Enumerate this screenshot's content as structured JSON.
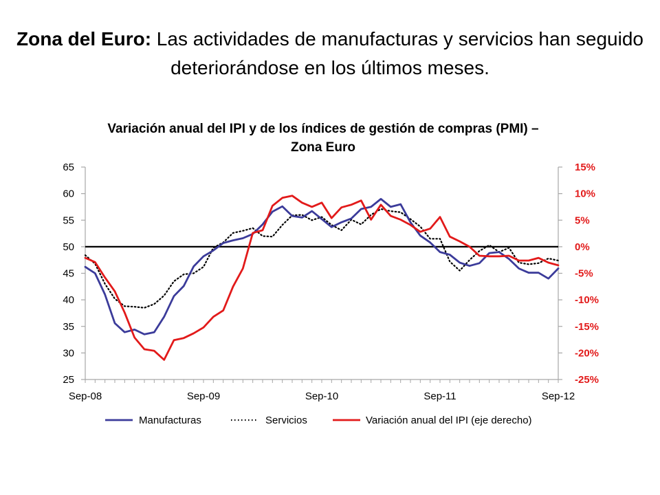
{
  "slide": {
    "title_bold": "Zona del Euro:",
    "title_rest": " Las actividades de manufacturas y servicios han seguido deteriorándose en los últimos meses."
  },
  "colors": {
    "manufacturas": "#3b3b9a",
    "servicios": "#000000",
    "ipi": "#e21a1a"
  },
  "chart_data": {
    "type": "line",
    "title": "Variación anual del IPI  y de los índices de gestión de compras (PMI) – Zona Euro",
    "y_left_range": [
      25,
      65
    ],
    "y_left_ticks": [
      "25",
      "30",
      "35",
      "40",
      "45",
      "50",
      "55",
      "60",
      "65"
    ],
    "y_right_range": [
      -25,
      15
    ],
    "y_right_ticks": [
      "-25%",
      "-20%",
      "-15%",
      "-10%",
      "-5%",
      "0%",
      "5%",
      "10%",
      "15%"
    ],
    "x_range": [
      0,
      48
    ],
    "x_ticks": [
      {
        "x": 0,
        "label": "Sep-08"
      },
      {
        "x": 12,
        "label": "Sep-09"
      },
      {
        "x": 24,
        "label": "Sep-10"
      },
      {
        "x": 36,
        "label": "Sep-11"
      },
      {
        "x": 48,
        "label": "Sep-12"
      }
    ],
    "reference_line": {
      "axis": "left",
      "value": 50
    },
    "series": [
      {
        "name": "Manufacturas",
        "axis": "left",
        "style": "solid",
        "values": [
          46.2,
          45,
          41,
          35.6,
          33.9,
          34.4,
          33.5,
          33.9,
          36.8,
          40.7,
          42.6,
          46.3,
          48.2,
          49.3,
          50.7,
          51.2,
          51.6,
          52.4,
          54.2,
          56.6,
          57.6,
          55.8,
          55.5,
          56.7,
          55.2,
          53.7,
          54.6,
          55.3,
          57.1,
          57.5,
          59,
          57.5,
          58,
          54.6,
          52.1,
          50.8,
          49,
          48.5,
          47,
          46.4,
          46.9,
          48.8,
          49,
          47.7,
          45.9,
          45.1,
          45.1,
          44,
          45.9
        ]
      },
      {
        "name": "Servicios",
        "axis": "left",
        "style": "dotted",
        "values": [
          48.4,
          46.8,
          43,
          40.2,
          38.8,
          38.7,
          38.5,
          39.2,
          40.8,
          43.5,
          44.8,
          45,
          46.2,
          49.8,
          50.8,
          52.6,
          53,
          53.5,
          52,
          51.9,
          54.1,
          55.9,
          56,
          55,
          55.6,
          54.1,
          53.1,
          55.1,
          54.2,
          56,
          57.1,
          56.7,
          56.5,
          55.2,
          53.8,
          51.5,
          51.5,
          47.2,
          45.5,
          47.5,
          49.2,
          50.3,
          49,
          49.8,
          47,
          46.7,
          46.9,
          47.8,
          47.4
        ]
      },
      {
        "name": "Variación anual del IPI (eje derecho)",
        "axis": "right",
        "style": "solid",
        "values": [
          -2.1,
          -2.9,
          -5.8,
          -8.4,
          -12.4,
          -17.1,
          -19.3,
          -19.6,
          -21.3,
          -17.6,
          -17.2,
          -16.3,
          -15.2,
          -13.2,
          -12,
          -7.5,
          -4.1,
          2.6,
          3.1,
          7.7,
          9.2,
          9.6,
          8.3,
          7.5,
          8.3,
          5.4,
          7.4,
          7.9,
          8.7,
          5.1,
          7.9,
          5.8,
          5.1,
          4.1,
          2.8,
          3.4,
          5.6,
          1.9,
          1,
          0,
          -1.7,
          -1.8,
          -1.8,
          -1.7,
          -2.6,
          -2.6,
          -2.1,
          -3,
          -3.5
        ]
      }
    ],
    "legend": {
      "placement": "bottom",
      "items": [
        "Manufacturas",
        "Servicios",
        "Variación anual del IPI (eje derecho)"
      ]
    }
  }
}
